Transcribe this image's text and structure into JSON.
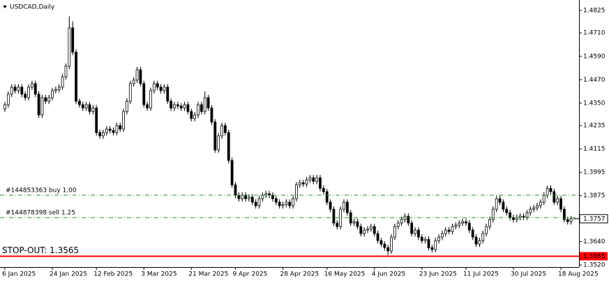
{
  "chart_data": {
    "type": "candlestick",
    "title": "USDCAD,Daily",
    "categories": [
      "6 Jan 2025",
      null,
      null,
      null,
      null,
      null,
      null,
      null,
      null,
      null,
      null,
      null,
      null,
      null,
      "24 Jan 2025",
      null,
      null,
      null,
      null,
      null,
      null,
      null,
      null,
      null,
      null,
      null,
      null,
      "12 Feb 2025",
      null,
      null,
      null,
      null,
      null,
      null,
      null,
      null,
      null,
      null,
      null,
      null,
      null,
      "3 Mar 2025",
      null,
      null,
      null,
      null,
      null,
      null,
      null,
      null,
      null,
      null,
      null,
      null,
      null,
      "21 Mar 2025",
      null,
      null,
      null,
      null,
      null,
      null,
      null,
      null,
      null,
      null,
      null,
      null,
      "9 Apr 2025",
      null,
      null,
      null,
      null,
      null,
      null,
      null,
      null,
      null,
      null,
      null,
      null,
      null,
      "28 Apr 2025",
      null,
      null,
      null,
      null,
      null,
      null,
      null,
      null,
      null,
      null,
      null,
      null,
      "16 May 2025",
      null,
      null,
      null,
      null,
      null,
      null,
      null,
      null,
      null,
      null,
      null,
      null,
      null,
      "4 Jun 2025",
      null,
      null,
      null,
      null,
      null,
      null,
      null,
      null,
      null,
      null,
      null,
      null,
      null,
      "23 Jun 2025",
      null,
      null,
      null,
      null,
      null,
      null,
      null,
      null,
      null,
      null,
      null,
      null,
      "11 Jul 2025",
      null,
      null,
      null,
      null,
      null,
      null,
      null,
      null,
      null,
      null,
      null,
      null,
      null,
      "30 Jul 2025",
      null,
      null,
      null,
      null,
      null,
      null,
      null,
      null,
      null,
      null,
      null,
      null,
      null,
      "18 Aug 2025",
      null,
      null,
      null
    ],
    "open": [
      1.432,
      1.4342,
      1.4396,
      1.4432,
      1.4414,
      1.4432,
      1.4396,
      1.4378,
      1.4432,
      1.445,
      1.4396,
      1.4289,
      1.4378,
      1.436,
      1.4378,
      1.4414,
      1.442,
      1.4432,
      1.4485,
      1.4539,
      1.4736,
      1.4611,
      1.436,
      1.4342,
      1.4325,
      1.4342,
      1.4307,
      1.4325,
      1.4199,
      1.4182,
      1.4199,
      1.4217,
      1.421,
      1.4199,
      1.4235,
      1.4217,
      1.4307,
      1.436,
      1.445,
      1.4468,
      1.4521,
      1.445,
      1.4342,
      1.4325,
      1.4414,
      1.445,
      1.4432,
      1.4414,
      1.4432,
      1.436,
      1.4325,
      1.4342,
      1.4335,
      1.4325,
      1.4342,
      1.4307,
      1.4271,
      1.4289,
      1.4342,
      1.4307,
      1.4378,
      1.4325,
      1.4253,
      1.411,
      1.4182,
      1.4235,
      1.4199,
      1.4056,
      1.3931,
      1.3878,
      1.386,
      1.3878,
      1.386,
      1.3868,
      1.3842,
      1.3824,
      1.386,
      1.3878,
      1.3885,
      1.3878,
      1.386,
      1.3842,
      1.3824,
      1.383,
      1.3842,
      1.3824,
      1.386,
      1.3931,
      1.3942,
      1.3935,
      1.3956,
      1.3967,
      1.3949,
      1.3967,
      1.3913,
      1.3896,
      1.3842,
      1.3806,
      1.3735,
      1.3717,
      1.3806,
      1.3842,
      1.3788,
      1.3735,
      1.3742,
      1.3717,
      1.3681,
      1.3699,
      1.3705,
      1.3717,
      1.3681,
      1.3645,
      1.3627,
      1.3609,
      1.3592,
      1.3663,
      1.3717,
      1.3735,
      1.3753,
      1.377,
      1.3735,
      1.3681,
      1.3699,
      1.3663,
      1.3645,
      1.3652,
      1.3609,
      1.3599,
      1.3645,
      1.3663,
      1.3681,
      1.3699,
      1.3692,
      1.3717,
      1.3724,
      1.3735,
      1.3742,
      1.3735,
      1.3699,
      1.3663,
      1.3627,
      1.3645,
      1.3681,
      1.3717,
      1.3753,
      1.3806,
      1.386,
      1.3842,
      1.3806,
      1.3788,
      1.3763,
      1.3753,
      1.3763,
      1.377,
      1.3765,
      1.3788,
      1.3806,
      1.3813,
      1.3824,
      1.3842,
      1.3878,
      1.3913,
      1.3896,
      1.3842,
      1.386,
      1.3806,
      1.3753,
      1.3742
    ],
    "high": [
      1.4357,
      1.4411,
      1.4447,
      1.4447,
      1.4447,
      1.4447,
      1.4411,
      1.4447,
      1.4465,
      1.4465,
      1.4411,
      1.4393,
      1.4393,
      1.4393,
      1.4429,
      1.4435,
      1.4447,
      1.45,
      1.4554,
      1.4795,
      1.477,
      1.4626,
      1.4375,
      1.4357,
      1.4357,
      1.4357,
      1.434,
      1.434,
      1.4214,
      1.4214,
      1.4232,
      1.4232,
      1.4225,
      1.425,
      1.425,
      1.4322,
      1.4375,
      1.4465,
      1.4483,
      1.4536,
      1.4536,
      1.4465,
      1.4357,
      1.4429,
      1.4465,
      1.4465,
      1.4447,
      1.4447,
      1.4447,
      1.4375,
      1.4357,
      1.4357,
      1.435,
      1.4357,
      1.4357,
      1.4322,
      1.4304,
      1.4357,
      1.4357,
      1.441,
      1.4393,
      1.434,
      1.4268,
      1.4197,
      1.425,
      1.425,
      1.4214,
      1.4071,
      1.3946,
      1.3893,
      1.3893,
      1.3893,
      1.3883,
      1.3883,
      1.3857,
      1.3875,
      1.3893,
      1.39,
      1.39,
      1.3893,
      1.3875,
      1.3857,
      1.3845,
      1.3857,
      1.3857,
      1.3875,
      1.3946,
      1.3957,
      1.3957,
      1.3971,
      1.3982,
      1.3982,
      1.3982,
      1.3982,
      1.3928,
      1.3911,
      1.3857,
      1.3821,
      1.375,
      1.3821,
      1.3857,
      1.3857,
      1.3803,
      1.3757,
      1.3757,
      1.3732,
      1.3714,
      1.372,
      1.3732,
      1.3732,
      1.3696,
      1.366,
      1.3642,
      1.3624,
      1.3678,
      1.3732,
      1.375,
      1.3768,
      1.3785,
      1.3785,
      1.375,
      1.3714,
      1.3714,
      1.3678,
      1.3667,
      1.3667,
      1.3624,
      1.366,
      1.3678,
      1.3696,
      1.3714,
      1.3714,
      1.3732,
      1.3739,
      1.375,
      1.3757,
      1.3757,
      1.375,
      1.3714,
      1.3678,
      1.366,
      1.3696,
      1.3732,
      1.3768,
      1.3821,
      1.3875,
      1.3875,
      1.3857,
      1.3821,
      1.3803,
      1.3778,
      1.3778,
      1.3785,
      1.3785,
      1.3803,
      1.3821,
      1.3828,
      1.3839,
      1.3857,
      1.3893,
      1.3928,
      1.3928,
      1.3911,
      1.3875,
      1.3875,
      1.3821,
      1.3768,
      1.3772
    ],
    "low": [
      1.4305,
      1.4327,
      1.4381,
      1.4399,
      1.4399,
      1.4381,
      1.4363,
      1.4363,
      1.4417,
      1.4381,
      1.4274,
      1.4274,
      1.4345,
      1.4345,
      1.4363,
      1.4399,
      1.4405,
      1.4417,
      1.447,
      1.4524,
      1.4596,
      1.4345,
      1.4327,
      1.431,
      1.431,
      1.4292,
      1.4292,
      1.4184,
      1.4167,
      1.4167,
      1.4184,
      1.4195,
      1.4184,
      1.4184,
      1.4202,
      1.4202,
      1.4292,
      1.4345,
      1.4435,
      1.4453,
      1.4435,
      1.4327,
      1.431,
      1.431,
      1.4399,
      1.4417,
      1.4399,
      1.4399,
      1.4345,
      1.431,
      1.431,
      1.432,
      1.431,
      1.431,
      1.4292,
      1.4256,
      1.4256,
      1.4274,
      1.4292,
      1.4292,
      1.431,
      1.4238,
      1.4095,
      1.4095,
      1.4167,
      1.4184,
      1.4041,
      1.3916,
      1.3863,
      1.3845,
      1.3845,
      1.3845,
      1.3845,
      1.3827,
      1.3809,
      1.3809,
      1.3845,
      1.3863,
      1.3863,
      1.3845,
      1.3827,
      1.3809,
      1.3809,
      1.3815,
      1.3809,
      1.3809,
      1.3845,
      1.3916,
      1.392,
      1.392,
      1.3941,
      1.3934,
      1.3934,
      1.3898,
      1.3881,
      1.3827,
      1.3791,
      1.372,
      1.3702,
      1.3702,
      1.3791,
      1.3773,
      1.372,
      1.372,
      1.3702,
      1.3666,
      1.3666,
      1.3684,
      1.369,
      1.3666,
      1.363,
      1.3612,
      1.3594,
      1.357,
      1.3577,
      1.3648,
      1.3702,
      1.372,
      1.3738,
      1.372,
      1.3666,
      1.3666,
      1.3648,
      1.363,
      1.363,
      1.3594,
      1.3584,
      1.3584,
      1.363,
      1.3648,
      1.3666,
      1.3677,
      1.3677,
      1.3702,
      1.3709,
      1.372,
      1.372,
      1.3684,
      1.3648,
      1.3612,
      1.3612,
      1.363,
      1.3666,
      1.3702,
      1.3738,
      1.3791,
      1.3827,
      1.3791,
      1.3773,
      1.3748,
      1.3738,
      1.3738,
      1.3748,
      1.375,
      1.375,
      1.3773,
      1.3791,
      1.3798,
      1.3809,
      1.3827,
      1.3863,
      1.3881,
      1.3827,
      1.3827,
      1.3791,
      1.3738,
      1.3727,
      1.3727
    ],
    "close": [
      1.4342,
      1.4396,
      1.4432,
      1.4414,
      1.4432,
      1.4396,
      1.4378,
      1.4432,
      1.445,
      1.4396,
      1.4289,
      1.4378,
      1.436,
      1.4378,
      1.4414,
      1.442,
      1.4432,
      1.4485,
      1.4539,
      1.4736,
      1.4611,
      1.436,
      1.4342,
      1.4325,
      1.4342,
      1.4307,
      1.4325,
      1.4199,
      1.4182,
      1.4199,
      1.4217,
      1.421,
      1.4199,
      1.4235,
      1.4217,
      1.4307,
      1.436,
      1.445,
      1.4468,
      1.4521,
      1.445,
      1.4342,
      1.4325,
      1.4414,
      1.445,
      1.4432,
      1.4414,
      1.4432,
      1.436,
      1.4325,
      1.4342,
      1.4335,
      1.4325,
      1.4342,
      1.4307,
      1.4271,
      1.4289,
      1.4342,
      1.4307,
      1.4378,
      1.4325,
      1.4253,
      1.411,
      1.4182,
      1.4235,
      1.4199,
      1.4056,
      1.3931,
      1.3878,
      1.386,
      1.3878,
      1.386,
      1.3868,
      1.3842,
      1.3824,
      1.386,
      1.3878,
      1.3885,
      1.3878,
      1.386,
      1.3842,
      1.3824,
      1.383,
      1.3842,
      1.3824,
      1.386,
      1.3931,
      1.3942,
      1.3935,
      1.3956,
      1.3967,
      1.3949,
      1.3967,
      1.3913,
      1.3896,
      1.3842,
      1.3806,
      1.3735,
      1.3717,
      1.3806,
      1.3842,
      1.3788,
      1.3735,
      1.3742,
      1.3717,
      1.3681,
      1.3699,
      1.3705,
      1.3717,
      1.3681,
      1.3645,
      1.3627,
      1.3609,
      1.3592,
      1.3663,
      1.3717,
      1.3735,
      1.3753,
      1.377,
      1.3735,
      1.3681,
      1.3699,
      1.3663,
      1.3645,
      1.3652,
      1.3609,
      1.3599,
      1.3645,
      1.3663,
      1.3681,
      1.3699,
      1.3692,
      1.3717,
      1.3724,
      1.3735,
      1.3742,
      1.3735,
      1.3699,
      1.3663,
      1.3627,
      1.3645,
      1.3681,
      1.3717,
      1.3753,
      1.3806,
      1.386,
      1.3842,
      1.3806,
      1.3788,
      1.3763,
      1.3753,
      1.3763,
      1.377,
      1.3765,
      1.3788,
      1.3806,
      1.3813,
      1.3824,
      1.3842,
      1.3878,
      1.3913,
      1.3896,
      1.3842,
      1.386,
      1.3806,
      1.3753,
      1.3742,
      1.3757
    ],
    "ylim": [
      1.3513,
      1.4868
    ],
    "yticks": [
      1.4825,
      {
        "value": 1.471,
        "label": "1.4710"
      },
      {
        "value": 1.459,
        "label": "1.4590"
      },
      {
        "value": 1.447,
        "label": "1.4470"
      },
      {
        "value": 1.435,
        "label": "1.4350"
      },
      1.4235,
      1.4115,
      1.3995,
      1.3875,
      {
        "value": 1.364,
        "label": "1.3640"
      },
      {
        "value": 1.352,
        "label": "1.3520"
      }
    ],
    "bid": 1.3757,
    "orders": [
      {
        "label": "#144853363 buy 1.00",
        "price": 1.3878
      },
      {
        "label": "#144878398 sell 1.25",
        "price": 1.3763
      }
    ],
    "stop_out": {
      "label": "STOP-OUT: 1.3565",
      "price": 1.3565
    },
    "candle_color": "#000000",
    "order_color": "#2e8b2e",
    "stop_color": "#ff0000"
  }
}
